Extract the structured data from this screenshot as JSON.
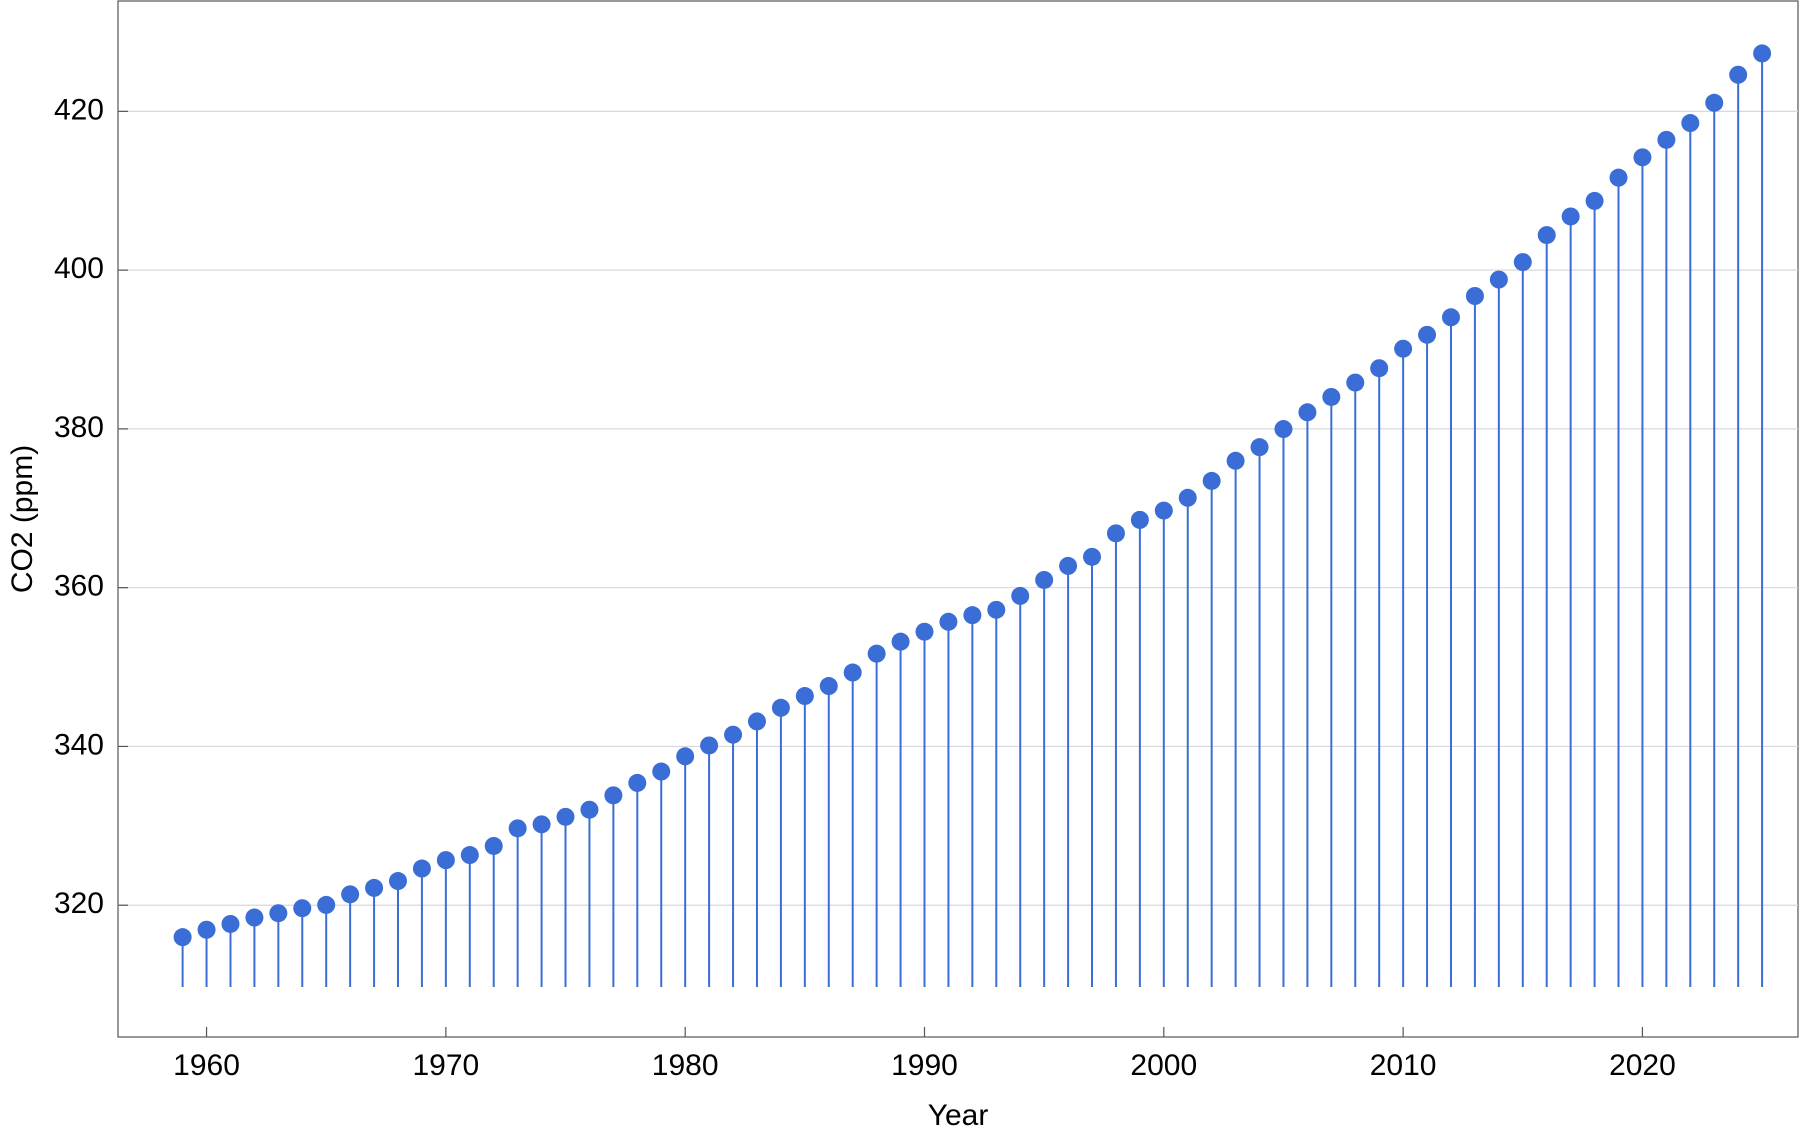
{
  "chart_data": {
    "type": "stem",
    "x_label": "Year",
    "y_label": "CO2 (ppm)",
    "color": "#3a6ed6",
    "x": [
      1959,
      1960,
      1961,
      1962,
      1963,
      1964,
      1965,
      1966,
      1967,
      1968,
      1969,
      1970,
      1971,
      1972,
      1973,
      1974,
      1975,
      1976,
      1977,
      1978,
      1979,
      1980,
      1981,
      1982,
      1983,
      1984,
      1985,
      1986,
      1987,
      1988,
      1989,
      1990,
      1991,
      1992,
      1993,
      1994,
      1995,
      1996,
      1997,
      1998,
      1999,
      2000,
      2001,
      2002,
      2003,
      2004,
      2005,
      2006,
      2007,
      2008,
      2009,
      2010,
      2011,
      2012,
      2013,
      2014,
      2015,
      2016,
      2017,
      2018,
      2019,
      2020,
      2021,
      2022,
      2023,
      2024,
      2025
    ],
    "values": [
      315.98,
      316.91,
      317.64,
      318.45,
      318.99,
      319.62,
      320.04,
      321.37,
      322.18,
      323.05,
      324.62,
      325.68,
      326.32,
      327.46,
      329.68,
      330.19,
      331.13,
      332.03,
      333.84,
      335.41,
      336.84,
      338.76,
      340.12,
      341.48,
      343.15,
      344.87,
      346.35,
      347.61,
      349.31,
      351.69,
      353.2,
      354.45,
      355.7,
      356.54,
      357.21,
      358.96,
      360.97,
      362.74,
      363.88,
      366.84,
      368.54,
      369.71,
      371.32,
      373.45,
      375.98,
      377.7,
      379.98,
      382.09,
      384.02,
      385.83,
      387.64,
      390.1,
      391.85,
      394.06,
      396.74,
      398.81,
      401.01,
      404.41,
      406.76,
      408.72,
      411.65,
      414.21,
      416.41,
      418.53,
      421.08,
      424.61,
      427.3
    ],
    "xlim": [
      1956.3,
      2026.5
    ],
    "xticks": [
      1960,
      1970,
      1980,
      1990,
      2000,
      2010,
      2020
    ],
    "ylim": [
      303.4,
      433.9
    ],
    "yticks": [
      320,
      340,
      360,
      380,
      400,
      420
    ],
    "grid": true
  }
}
